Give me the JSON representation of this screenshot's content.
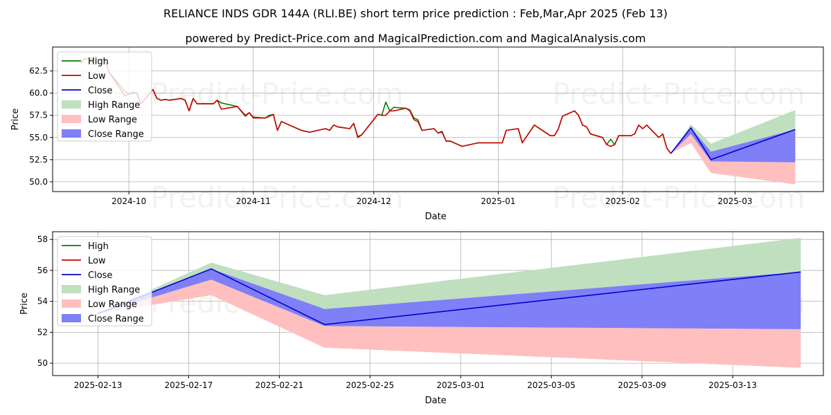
{
  "titles": {
    "line1": "RELIANCE INDS GDR 144A (RLI.BE) short term price prediction : Feb,Mar,Apr 2025 (Feb 13)",
    "line2": "powered by Predict-Price.com and MagicalPrediction.com and MagicalAnalysis.com"
  },
  "watermark": "Predict-Price.com",
  "legend": [
    "High",
    "Low",
    "Close",
    "High Range",
    "Low Range",
    "Close Range"
  ],
  "colors": {
    "high": "#008000",
    "low": "#cc0000",
    "close": "#0000cc",
    "high_range": "#bfdfbf",
    "low_range": "#ffbfbf",
    "close_range": "#7f7ff7"
  },
  "chart_data": [
    {
      "type": "line",
      "xlabel": "Date",
      "ylabel": "Price",
      "xlim": [
        "2024-09-12",
        "2025-03-23"
      ],
      "ylim": [
        48.9,
        65.2
      ],
      "x_ticks": [
        "2024-10-01",
        "2024-11-01",
        "2024-12-01",
        "2025-01-01",
        "2025-02-01",
        "2025-03-01"
      ],
      "x_tick_labels": [
        "2024-10",
        "2024-11",
        "2024-12",
        "2025-01",
        "2025-02",
        "2025-03"
      ],
      "y_ticks": [
        50.0,
        52.5,
        55.0,
        57.5,
        60.0,
        62.5
      ],
      "y_tick_labels": [
        "50.0",
        "52.5",
        "55.0",
        "57.5",
        "60.0",
        "62.5"
      ],
      "grid": true,
      "legend_position": "upper-left",
      "series": [
        {
          "name": "High",
          "x": [
            "2024-09-19",
            "2024-09-20",
            "2024-09-23",
            "2024-09-24",
            "2024-09-25",
            "2024-09-26",
            "2024-09-30",
            "2024-10-01",
            "2024-10-02",
            "2024-10-03",
            "2024-10-04",
            "2024-10-07",
            "2024-10-08",
            "2024-10-09",
            "2024-10-10",
            "2024-10-11",
            "2024-10-14",
            "2024-10-15",
            "2024-10-16",
            "2024-10-17",
            "2024-10-18",
            "2024-10-21",
            "2024-10-22",
            "2024-10-23",
            "2024-10-24",
            "2024-10-28",
            "2024-10-30",
            "2024-10-31",
            "2024-11-01",
            "2024-11-04",
            "2024-11-05",
            "2024-11-06",
            "2024-11-07",
            "2024-11-08",
            "2024-11-12",
            "2024-11-13",
            "2024-11-14",
            "2024-11-15",
            "2024-11-19",
            "2024-11-20",
            "2024-11-21",
            "2024-11-22",
            "2024-11-25",
            "2024-11-26",
            "2024-11-27",
            "2024-11-28",
            "2024-12-02",
            "2024-12-03",
            "2024-12-04",
            "2024-12-05",
            "2024-12-06",
            "2024-12-09",
            "2024-12-10",
            "2024-12-11",
            "2024-12-12",
            "2024-12-13",
            "2024-12-16",
            "2024-12-17",
            "2024-12-18",
            "2024-12-19",
            "2024-12-20",
            "2024-12-23",
            "2024-12-27",
            "2025-01-02",
            "2025-01-03",
            "2025-01-06",
            "2025-01-07",
            "2025-01-10",
            "2025-01-13",
            "2025-01-14",
            "2025-01-15",
            "2025-01-16",
            "2025-01-17",
            "2025-01-20",
            "2025-01-21",
            "2025-01-22",
            "2025-01-23",
            "2025-01-24",
            "2025-01-27",
            "2025-01-28",
            "2025-01-29",
            "2025-01-30",
            "2025-01-31",
            "2025-02-03",
            "2025-02-04",
            "2025-02-05",
            "2025-02-06",
            "2025-02-07",
            "2025-02-10",
            "2025-02-11",
            "2025-02-12",
            "2025-02-13"
          ],
          "values": [
            63.4,
            63.9,
            63.8,
            63.8,
            63.8,
            62.4,
            60.2,
            59.9,
            60.1,
            60.0,
            58.8,
            60.4,
            59.4,
            59.2,
            59.3,
            59.2,
            59.4,
            59.2,
            58.0,
            59.4,
            58.8,
            58.8,
            58.8,
            59.2,
            58.9,
            58.5,
            57.5,
            57.8,
            57.3,
            57.2,
            57.5,
            57.6,
            55.8,
            56.8,
            56.0,
            55.8,
            55.7,
            55.6,
            56.0,
            55.8,
            56.4,
            56.2,
            56.0,
            56.6,
            55.1,
            55.3,
            57.6,
            57.5,
            59.0,
            58.0,
            58.4,
            58.3,
            58.1,
            57.2,
            57.0,
            55.8,
            56.0,
            55.5,
            55.7,
            54.6,
            54.6,
            54.0,
            54.4,
            54.4,
            55.8,
            56.0,
            54.4,
            56.4,
            55.5,
            55.2,
            55.2,
            56.0,
            57.4,
            58.0,
            57.5,
            56.4,
            56.2,
            55.4,
            55.0,
            54.2,
            54.8,
            54.2,
            55.2,
            55.2,
            55.4,
            56.4,
            56.0,
            56.4,
            55.0,
            55.4,
            53.8,
            53.2
          ]
        },
        {
          "name": "Low",
          "x": [
            "2024-09-19",
            "2024-09-20",
            "2024-09-23",
            "2024-09-24",
            "2024-09-25",
            "2024-09-26",
            "2024-09-30",
            "2024-10-01",
            "2024-10-02",
            "2024-10-03",
            "2024-10-04",
            "2024-10-07",
            "2024-10-08",
            "2024-10-09",
            "2024-10-10",
            "2024-10-11",
            "2024-10-14",
            "2024-10-15",
            "2024-10-16",
            "2024-10-17",
            "2024-10-18",
            "2024-10-21",
            "2024-10-22",
            "2024-10-23",
            "2024-10-24",
            "2024-10-28",
            "2024-10-30",
            "2024-10-31",
            "2024-11-01",
            "2024-11-04",
            "2024-11-05",
            "2024-11-06",
            "2024-11-07",
            "2024-11-08",
            "2024-11-12",
            "2024-11-13",
            "2024-11-14",
            "2024-11-15",
            "2024-11-19",
            "2024-11-20",
            "2024-11-21",
            "2024-11-22",
            "2024-11-25",
            "2024-11-26",
            "2024-11-27",
            "2024-11-28",
            "2024-12-02",
            "2024-12-03",
            "2024-12-04",
            "2024-12-05",
            "2024-12-06",
            "2024-12-09",
            "2024-12-10",
            "2024-12-11",
            "2024-12-12",
            "2024-12-13",
            "2024-12-16",
            "2024-12-17",
            "2024-12-18",
            "2024-12-19",
            "2024-12-20",
            "2024-12-23",
            "2024-12-27",
            "2025-01-02",
            "2025-01-03",
            "2025-01-06",
            "2025-01-07",
            "2025-01-10",
            "2025-01-13",
            "2025-01-14",
            "2025-01-15",
            "2025-01-16",
            "2025-01-17",
            "2025-01-20",
            "2025-01-21",
            "2025-01-22",
            "2025-01-23",
            "2025-01-24",
            "2025-01-27",
            "2025-01-28",
            "2025-01-29",
            "2025-01-30",
            "2025-01-31",
            "2025-02-03",
            "2025-02-04",
            "2025-02-05",
            "2025-02-06",
            "2025-02-07",
            "2025-02-10",
            "2025-02-11",
            "2025-02-12",
            "2025-02-13"
          ],
          "values": [
            63.4,
            63.9,
            63.8,
            63.8,
            63.8,
            62.4,
            59.7,
            59.9,
            60.0,
            60.0,
            58.8,
            60.4,
            59.4,
            59.2,
            59.3,
            59.2,
            59.4,
            59.2,
            58.0,
            59.4,
            58.8,
            58.8,
            58.8,
            59.2,
            58.2,
            58.5,
            57.4,
            57.8,
            57.2,
            57.2,
            57.4,
            57.6,
            55.8,
            56.8,
            56.0,
            55.8,
            55.7,
            55.6,
            56.0,
            55.8,
            56.4,
            56.2,
            56.0,
            56.6,
            55.0,
            55.3,
            57.6,
            57.5,
            57.5,
            58.0,
            58.0,
            58.3,
            58.0,
            57.0,
            56.8,
            55.8,
            56.0,
            55.5,
            55.6,
            54.6,
            54.6,
            54.0,
            54.4,
            54.4,
            55.8,
            56.0,
            54.4,
            56.4,
            55.5,
            55.2,
            55.2,
            56.0,
            57.4,
            58.0,
            57.5,
            56.4,
            56.2,
            55.4,
            55.0,
            54.2,
            54.0,
            54.2,
            55.2,
            55.2,
            55.4,
            56.4,
            56.0,
            56.4,
            55.0,
            55.4,
            53.8,
            53.2
          ]
        },
        {
          "name": "Close",
          "x": [
            "2025-02-13",
            "2025-02-18",
            "2025-02-23",
            "2025-03-16"
          ],
          "values": [
            53.2,
            56.1,
            52.5,
            55.9
          ]
        },
        {
          "name": "High Range",
          "x": [
            "2025-02-13",
            "2025-02-18",
            "2025-02-23",
            "2025-03-16"
          ],
          "upper": [
            53.2,
            56.5,
            54.3,
            58.1
          ],
          "lower": [
            53.2,
            56.1,
            53.4,
            55.9
          ]
        },
        {
          "name": "Low Range",
          "x": [
            "2025-02-13",
            "2025-02-18",
            "2025-02-23",
            "2025-03-16"
          ],
          "upper": [
            53.2,
            55.4,
            52.3,
            52.2
          ],
          "lower": [
            53.2,
            54.4,
            51.0,
            49.7
          ]
        },
        {
          "name": "Close Range",
          "x": [
            "2025-02-13",
            "2025-02-18",
            "2025-02-23",
            "2025-03-16"
          ],
          "upper": [
            53.2,
            56.1,
            53.4,
            55.9
          ],
          "lower": [
            53.2,
            55.4,
            52.3,
            52.2
          ]
        }
      ]
    },
    {
      "type": "line",
      "xlabel": "Date",
      "ylabel": "Price",
      "xlim": [
        "2025-02-11",
        "2025-03-17"
      ],
      "ylim": [
        49.2,
        58.5
      ],
      "x_ticks": [
        "2025-02-13",
        "2025-02-17",
        "2025-02-21",
        "2025-02-25",
        "2025-03-01",
        "2025-03-05",
        "2025-03-09",
        "2025-03-13"
      ],
      "x_tick_labels": [
        "2025-02-13",
        "2025-02-17",
        "2025-02-21",
        "2025-02-25",
        "2025-03-01",
        "2025-03-05",
        "2025-03-09",
        "2025-03-13"
      ],
      "y_ticks": [
        50,
        52,
        54,
        56,
        58
      ],
      "y_tick_labels": [
        "50",
        "52",
        "54",
        "56",
        "58"
      ],
      "grid": true,
      "legend_position": "upper-left",
      "series": [
        {
          "name": "High",
          "x": [
            "2025-02-13"
          ],
          "values": [
            53.2
          ]
        },
        {
          "name": "Low",
          "x": [
            "2025-02-13"
          ],
          "values": [
            53.2
          ]
        },
        {
          "name": "Close",
          "x": [
            "2025-02-13",
            "2025-02-18",
            "2025-02-23",
            "2025-03-16"
          ],
          "values": [
            53.2,
            56.1,
            52.5,
            55.9
          ]
        },
        {
          "name": "High Range",
          "x": [
            "2025-02-13",
            "2025-02-18",
            "2025-02-23",
            "2025-03-16"
          ],
          "upper": [
            53.2,
            56.5,
            54.4,
            58.1
          ],
          "lower": [
            53.2,
            56.1,
            53.5,
            55.9
          ]
        },
        {
          "name": "Low Range",
          "x": [
            "2025-02-13",
            "2025-02-18",
            "2025-02-23",
            "2025-03-16"
          ],
          "upper": [
            53.2,
            55.4,
            52.4,
            52.2
          ],
          "lower": [
            53.2,
            54.4,
            51.0,
            49.7
          ]
        },
        {
          "name": "Close Range",
          "x": [
            "2025-02-13",
            "2025-02-18",
            "2025-02-23",
            "2025-03-16"
          ],
          "upper": [
            53.2,
            56.1,
            53.5,
            55.9
          ],
          "lower": [
            53.2,
            55.4,
            52.4,
            52.2
          ]
        }
      ]
    }
  ]
}
